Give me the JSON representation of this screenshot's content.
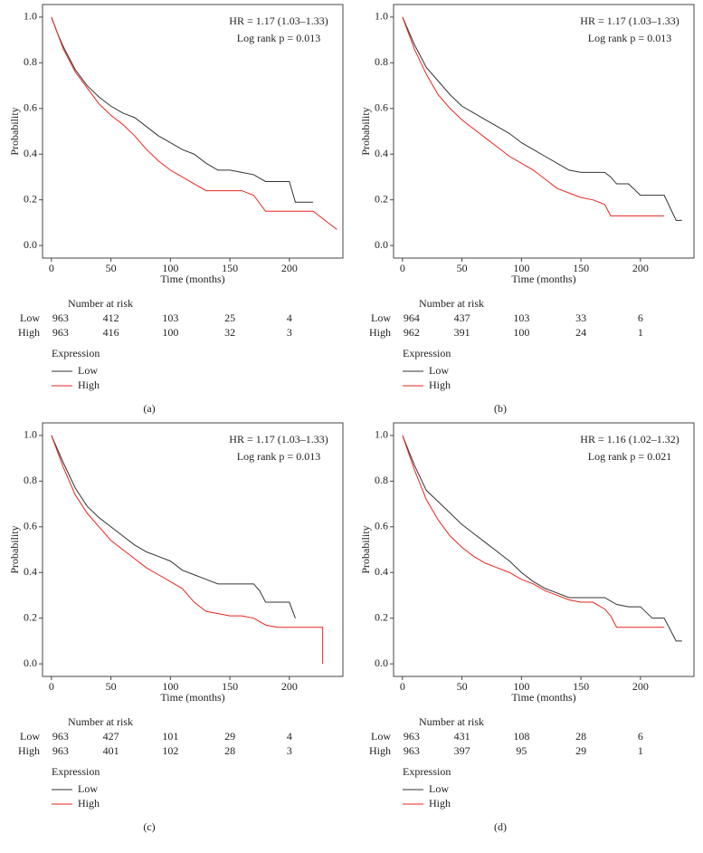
{
  "chart_data": [
    {
      "type": "line",
      "panel": "(a)",
      "annotations": [
        "HR = 1.17 (1.03–1.33)",
        "Log rank p = 0.013"
      ],
      "xlabel": "Time (months)",
      "ylabel": "Probability",
      "xlim": [
        -7.5,
        245
      ],
      "ylim": [
        -0.055,
        1.055
      ],
      "xticks": [
        0,
        50,
        100,
        150,
        200
      ],
      "yticks": [
        {
          "value": 0,
          "label": "0.0"
        },
        0.2,
        0.4,
        0.6,
        0.8,
        {
          "value": 1,
          "label": "1.0"
        }
      ],
      "series": [
        {
          "name": "Low",
          "color": "#333333",
          "x": [
            0,
            5,
            10,
            20,
            30,
            40,
            50,
            60,
            70,
            80,
            90,
            100,
            110,
            120,
            130,
            140,
            150,
            160,
            170,
            180,
            190,
            200,
            205,
            220
          ],
          "values": [
            1,
            0.93,
            0.87,
            0.77,
            0.7,
            0.65,
            0.61,
            0.58,
            0.56,
            0.52,
            0.48,
            0.45,
            0.42,
            0.4,
            0.36,
            0.33,
            0.33,
            0.32,
            0.31,
            0.28,
            0.28,
            0.28,
            0.19,
            0.19
          ]
        },
        {
          "name": "High",
          "color": "#e8251e",
          "x": [
            0,
            5,
            10,
            20,
            30,
            40,
            50,
            60,
            70,
            80,
            90,
            100,
            110,
            120,
            130,
            140,
            150,
            160,
            170,
            180,
            190,
            200,
            220,
            240
          ],
          "values": [
            1,
            0.93,
            0.86,
            0.76,
            0.69,
            0.62,
            0.57,
            0.53,
            0.48,
            0.42,
            0.37,
            0.33,
            0.3,
            0.27,
            0.24,
            0.24,
            0.24,
            0.24,
            0.22,
            0.15,
            0.15,
            0.15,
            0.15,
            0.07
          ]
        }
      ],
      "risk_table": {
        "title": "Number at risk",
        "rows": [
          {
            "name": "Low",
            "values": [
              963,
              412,
              103,
              25,
              4
            ]
          },
          {
            "name": "High",
            "values": [
              963,
              416,
              100,
              32,
              3
            ]
          }
        ]
      },
      "legend_title": "Expression"
    },
    {
      "type": "line",
      "panel": "(b)",
      "annotations": [
        "HR = 1.17 (1.03–1.33)",
        "Log rank p = 0.013"
      ],
      "xlabel": "Time (months)",
      "ylabel": "Probability",
      "xlim": [
        -7.5,
        245
      ],
      "ylim": [
        -0.055,
        1.055
      ],
      "xticks": [
        0,
        50,
        100,
        150,
        200
      ],
      "yticks": [
        {
          "value": 0,
          "label": "0.0"
        },
        0.2,
        0.4,
        0.6,
        0.8,
        {
          "value": 1,
          "label": "1.0"
        }
      ],
      "series": [
        {
          "name": "Low",
          "color": "#333333",
          "x": [
            0,
            10,
            20,
            30,
            40,
            50,
            60,
            70,
            80,
            90,
            100,
            110,
            120,
            130,
            140,
            150,
            160,
            170,
            175,
            180,
            190,
            200,
            210,
            220,
            230,
            235
          ],
          "values": [
            1,
            0.88,
            0.78,
            0.72,
            0.66,
            0.61,
            0.58,
            0.55,
            0.52,
            0.49,
            0.45,
            0.42,
            0.39,
            0.36,
            0.33,
            0.32,
            0.32,
            0.32,
            0.3,
            0.27,
            0.27,
            0.22,
            0.22,
            0.22,
            0.11,
            0.11
          ]
        },
        {
          "name": "High",
          "color": "#e8251e",
          "x": [
            0,
            10,
            20,
            30,
            40,
            50,
            60,
            70,
            80,
            90,
            100,
            110,
            120,
            130,
            140,
            150,
            160,
            170,
            175,
            180,
            190,
            200,
            220
          ],
          "values": [
            1,
            0.86,
            0.75,
            0.66,
            0.6,
            0.55,
            0.51,
            0.47,
            0.43,
            0.39,
            0.36,
            0.33,
            0.29,
            0.25,
            0.23,
            0.21,
            0.2,
            0.18,
            0.13,
            0.13,
            0.13,
            0.13,
            0.13
          ]
        }
      ],
      "risk_table": {
        "title": "Number at risk",
        "rows": [
          {
            "name": "Low",
            "values": [
              964,
              437,
              103,
              33,
              6
            ]
          },
          {
            "name": "High",
            "values": [
              962,
              391,
              100,
              24,
              1
            ]
          }
        ]
      },
      "legend_title": "Expression"
    },
    {
      "type": "line",
      "panel": "(c)",
      "annotations": [
        "HR = 1.17 (1.03–1.33)",
        "Log rank p = 0.013"
      ],
      "xlabel": "Time (months)",
      "ylabel": "Probability",
      "xlim": [
        -7.5,
        245
      ],
      "ylim": [
        -0.055,
        1.055
      ],
      "xticks": [
        0,
        50,
        100,
        150,
        200
      ],
      "yticks": [
        {
          "value": 0,
          "label": "0.0"
        },
        0.2,
        0.4,
        0.6,
        0.8,
        {
          "value": 1,
          "label": "1.0"
        }
      ],
      "series": [
        {
          "name": "Low",
          "color": "#333333",
          "x": [
            0,
            10,
            20,
            30,
            40,
            50,
            60,
            70,
            80,
            90,
            100,
            110,
            120,
            130,
            140,
            150,
            160,
            170,
            175,
            180,
            190,
            200,
            205
          ],
          "values": [
            1,
            0.88,
            0.77,
            0.69,
            0.64,
            0.6,
            0.56,
            0.52,
            0.49,
            0.47,
            0.45,
            0.41,
            0.39,
            0.37,
            0.35,
            0.35,
            0.35,
            0.35,
            0.32,
            0.27,
            0.27,
            0.27,
            0.2
          ]
        },
        {
          "name": "High",
          "color": "#e8251e",
          "x": [
            0,
            10,
            20,
            30,
            40,
            50,
            60,
            70,
            80,
            90,
            100,
            110,
            120,
            130,
            140,
            150,
            160,
            170,
            180,
            190,
            200,
            210,
            220,
            228,
            228
          ],
          "values": [
            1,
            0.86,
            0.74,
            0.66,
            0.6,
            0.54,
            0.5,
            0.46,
            0.42,
            0.39,
            0.36,
            0.33,
            0.27,
            0.23,
            0.22,
            0.21,
            0.21,
            0.2,
            0.17,
            0.16,
            0.16,
            0.16,
            0.16,
            0.16,
            0.0
          ]
        }
      ],
      "risk_table": {
        "title": "Number at risk",
        "rows": [
          {
            "name": "Low",
            "values": [
              963,
              427,
              101,
              29,
              4
            ]
          },
          {
            "name": "High",
            "values": [
              963,
              401,
              102,
              28,
              3
            ]
          }
        ]
      },
      "legend_title": "Expression"
    },
    {
      "type": "line",
      "panel": "(d)",
      "annotations": [
        "HR = 1.16 (1.02–1.32)",
        "Log rank p = 0.021"
      ],
      "xlabel": "Time (months)",
      "ylabel": "Probability",
      "xlim": [
        -7.5,
        245
      ],
      "ylim": [
        -0.055,
        1.055
      ],
      "xticks": [
        0,
        50,
        100,
        150,
        200
      ],
      "yticks": [
        {
          "value": 0,
          "label": "0.0"
        },
        0.2,
        0.4,
        0.6,
        0.8,
        {
          "value": 1,
          "label": "1.0"
        }
      ],
      "series": [
        {
          "name": "Low",
          "color": "#333333",
          "x": [
            0,
            10,
            20,
            30,
            40,
            50,
            60,
            70,
            80,
            90,
            100,
            110,
            120,
            130,
            140,
            150,
            160,
            170,
            180,
            190,
            200,
            210,
            220,
            230,
            235
          ],
          "values": [
            1,
            0.87,
            0.76,
            0.71,
            0.66,
            0.61,
            0.57,
            0.53,
            0.49,
            0.45,
            0.4,
            0.36,
            0.33,
            0.31,
            0.29,
            0.29,
            0.29,
            0.29,
            0.26,
            0.25,
            0.25,
            0.2,
            0.2,
            0.1,
            0.1
          ]
        },
        {
          "name": "High",
          "color": "#e8251e",
          "x": [
            0,
            10,
            20,
            30,
            40,
            50,
            60,
            70,
            80,
            90,
            100,
            110,
            120,
            130,
            140,
            150,
            160,
            170,
            175,
            180,
            200,
            220
          ],
          "values": [
            1,
            0.85,
            0.72,
            0.63,
            0.56,
            0.51,
            0.47,
            0.44,
            0.42,
            0.4,
            0.37,
            0.35,
            0.32,
            0.3,
            0.28,
            0.27,
            0.27,
            0.24,
            0.21,
            0.16,
            0.16,
            0.16
          ]
        }
      ],
      "risk_table": {
        "title": "Number at risk",
        "rows": [
          {
            "name": "Low",
            "values": [
              963,
              431,
              108,
              28,
              6
            ]
          },
          {
            "name": "High",
            "values": [
              963,
              397,
              95,
              29,
              1
            ]
          }
        ]
      },
      "legend_title": "Expression"
    }
  ]
}
